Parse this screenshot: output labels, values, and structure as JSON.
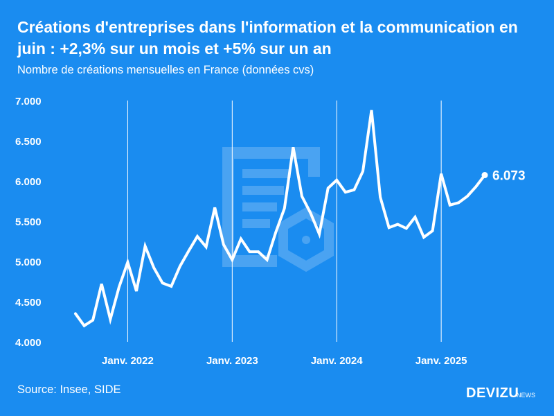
{
  "title": "Créations d'entreprises dans l'information et la communication en juin : +2,3% sur un mois et +5% sur un an",
  "subtitle": "Nombre de créations mensuelles en France (données cvs)",
  "source": "Source: Insee, SIDE",
  "brand": {
    "name": "DEVIZU",
    "suffix": "NEWS"
  },
  "colors": {
    "background": "#1a8cf0",
    "line": "#ffffff",
    "watermark": "#4aa3f2"
  },
  "chart_data": {
    "type": "line",
    "title": "Créations d'entreprises dans l'information et la communication en juin : +2,3% sur un mois et +5% sur un an",
    "xlabel": "",
    "ylabel": "",
    "ylim": [
      4000,
      7000
    ],
    "y_ticks": [
      {
        "value": 4000,
        "label": "4.000"
      },
      {
        "value": 4500,
        "label": "4.500"
      },
      {
        "value": 5000,
        "label": "5.000"
      },
      {
        "value": 5500,
        "label": "5.500"
      },
      {
        "value": 6000,
        "label": "6.000"
      },
      {
        "value": 6500,
        "label": "6.500"
      },
      {
        "value": 7000,
        "label": "7.000"
      }
    ],
    "x_ticks": [
      {
        "value": "2022-01",
        "label": "Janv. 2022"
      },
      {
        "value": "2023-01",
        "label": "Janv. 2023"
      },
      {
        "value": "2024-01",
        "label": "Janv. 2024"
      },
      {
        "value": "2025-01",
        "label": "Janv. 2025"
      }
    ],
    "grid": "vertical lines at January ticks",
    "last_value_label": "6.073",
    "series": [
      {
        "x": [
          "2021-07",
          "2021-08",
          "2021-09",
          "2021-10",
          "2021-11",
          "2021-12",
          "2022-01",
          "2022-02",
          "2022-03",
          "2022-04",
          "2022-05",
          "2022-06",
          "2022-07",
          "2022-08",
          "2022-09",
          "2022-10",
          "2022-11",
          "2022-12",
          "2023-01",
          "2023-02",
          "2023-03",
          "2023-04",
          "2023-05",
          "2023-06",
          "2023-07",
          "2023-08",
          "2023-09",
          "2023-10",
          "2023-11",
          "2023-12",
          "2024-01",
          "2024-02",
          "2024-03",
          "2024-04",
          "2024-05",
          "2024-06",
          "2024-07",
          "2024-08",
          "2024-09",
          "2024-10",
          "2024-11",
          "2024-12",
          "2025-01",
          "2025-02",
          "2025-03",
          "2025-04",
          "2025-05",
          "2025-06"
        ],
        "values": [
          4350,
          4200,
          4270,
          4720,
          4280,
          4680,
          4990,
          4630,
          5190,
          4920,
          4730,
          4690,
          4940,
          5130,
          5310,
          5180,
          5670,
          5210,
          5020,
          5280,
          5120,
          5120,
          5020,
          5360,
          5660,
          6420,
          5810,
          5600,
          5340,
          5910,
          6010,
          5860,
          5890,
          6120,
          6880,
          5800,
          5420,
          5460,
          5410,
          5550,
          5300,
          5380,
          6090,
          5700,
          5730,
          5810,
          5930,
          6073
        ]
      }
    ]
  }
}
